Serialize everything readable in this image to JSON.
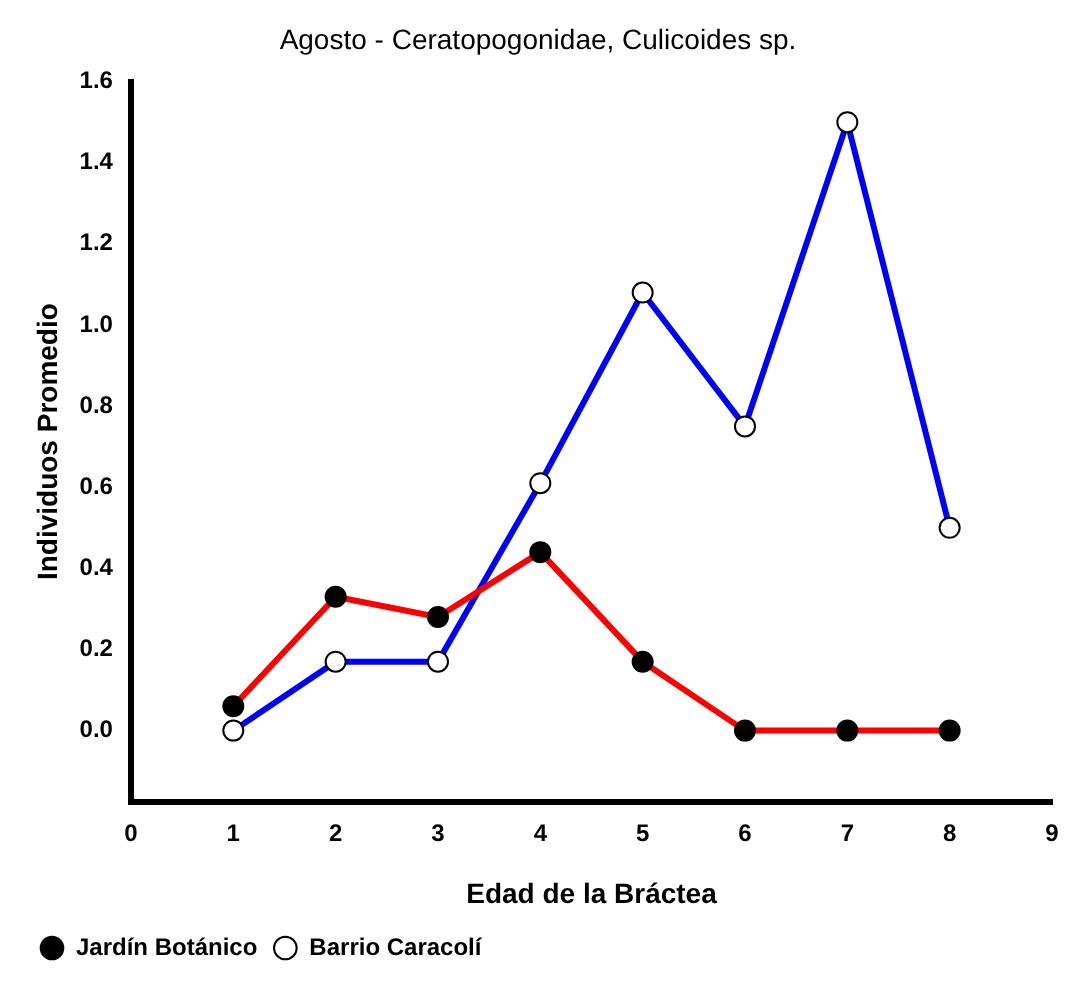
{
  "chart_data": {
    "type": "line",
    "title": "Agosto - Ceratopogonidae, Culicoides sp.",
    "xlabel": "Edad de la Bráctea",
    "ylabel": "Individuos Promedio",
    "x": [
      1,
      2,
      3,
      4,
      5,
      6,
      7,
      8
    ],
    "series": [
      {
        "name": "Jardín Botánico",
        "color": "#ff0000",
        "values": [
          0.06,
          0.33,
          0.28,
          0.44,
          0.17,
          0,
          0,
          0
        ]
      },
      {
        "name": "Barrio Caracolí",
        "color": "#0000ff",
        "values": [
          0,
          0.17,
          0.17,
          0.61,
          1.08,
          0.75,
          1.5,
          0.5
        ]
      }
    ],
    "xlim": [
      0,
      9
    ],
    "xticks": [
      0,
      1,
      2,
      3,
      4,
      5,
      6,
      7,
      8,
      9
    ],
    "ylim": [
      -0.175,
      1.6
    ],
    "yticks": [
      {
        "value": 0,
        "label": "0.0"
      },
      {
        "value": 0.2,
        "label": "0.2"
      },
      {
        "value": 0.4,
        "label": "0.4"
      },
      {
        "value": 0.6,
        "label": "0.6"
      },
      {
        "value": 0.8,
        "label": "0.8"
      },
      {
        "value": 1,
        "label": "1.0"
      },
      {
        "value": 1.2,
        "label": "1.2"
      },
      {
        "value": 1.4,
        "label": "1.4"
      },
      {
        "value": 1.6,
        "label": "1.6"
      }
    ],
    "grid": false,
    "legend": "bottom left",
    "marker": "circle",
    "line_style": "solid"
  }
}
